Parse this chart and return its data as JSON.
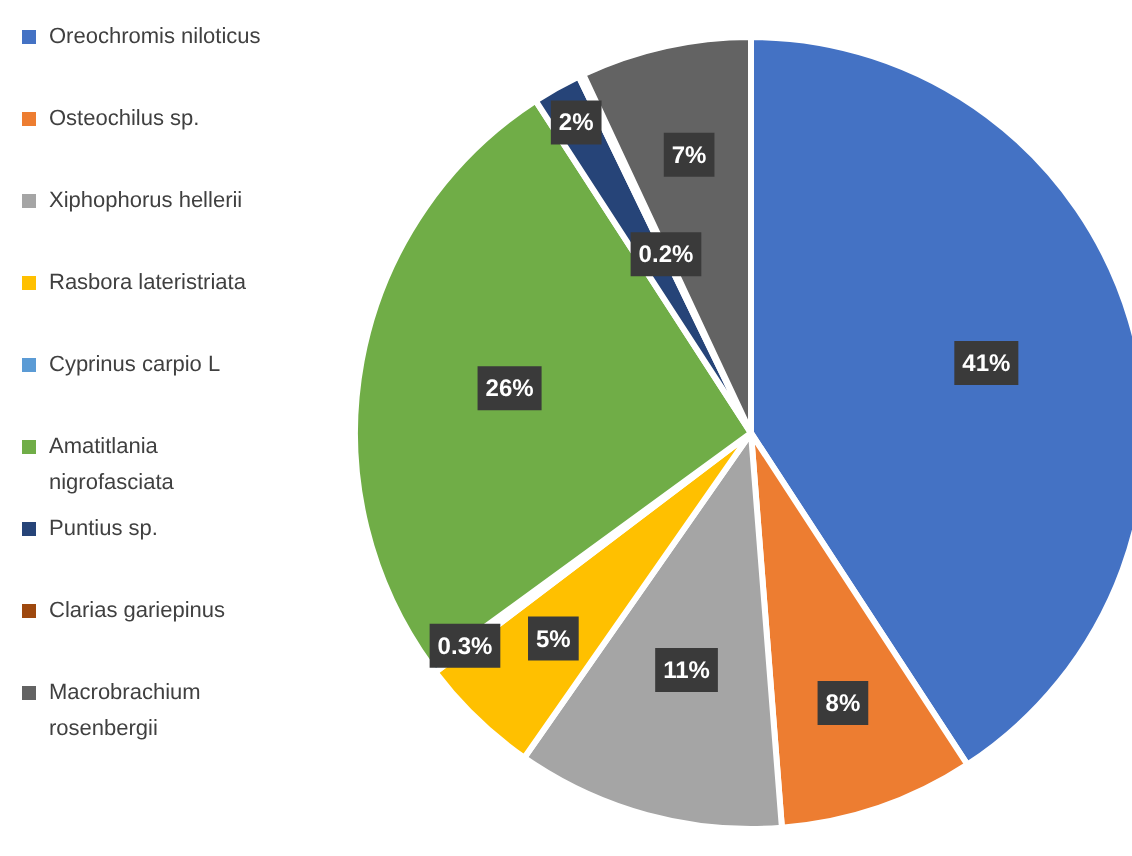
{
  "chart_data": {
    "type": "pie",
    "categories": [
      "Oreochromis niloticus",
      "Osteochilus sp.",
      "Xiphophorus hellerii",
      "Rasbora lateristriata",
      "Cyprinus carpio L",
      "Amatitlania nigrofasciata",
      "Puntius sp.",
      "Clarias gariepinus",
      "Macrobrachium rosenbergii"
    ],
    "values": [
      41,
      8,
      11,
      5,
      0.3,
      26,
      2,
      0.2,
      7
    ],
    "colors": [
      "#4472c4",
      "#ed7d31",
      "#a5a5a5",
      "#ffc000",
      "#5b9bd5",
      "#70ad47",
      "#264478",
      "#9e480e",
      "#636363"
    ],
    "value_labels": [
      "41%",
      "8%",
      "11%",
      "5%",
      "0.3%",
      "26%",
      "2%",
      "0.2%",
      "7%"
    ],
    "legend": "left"
  }
}
